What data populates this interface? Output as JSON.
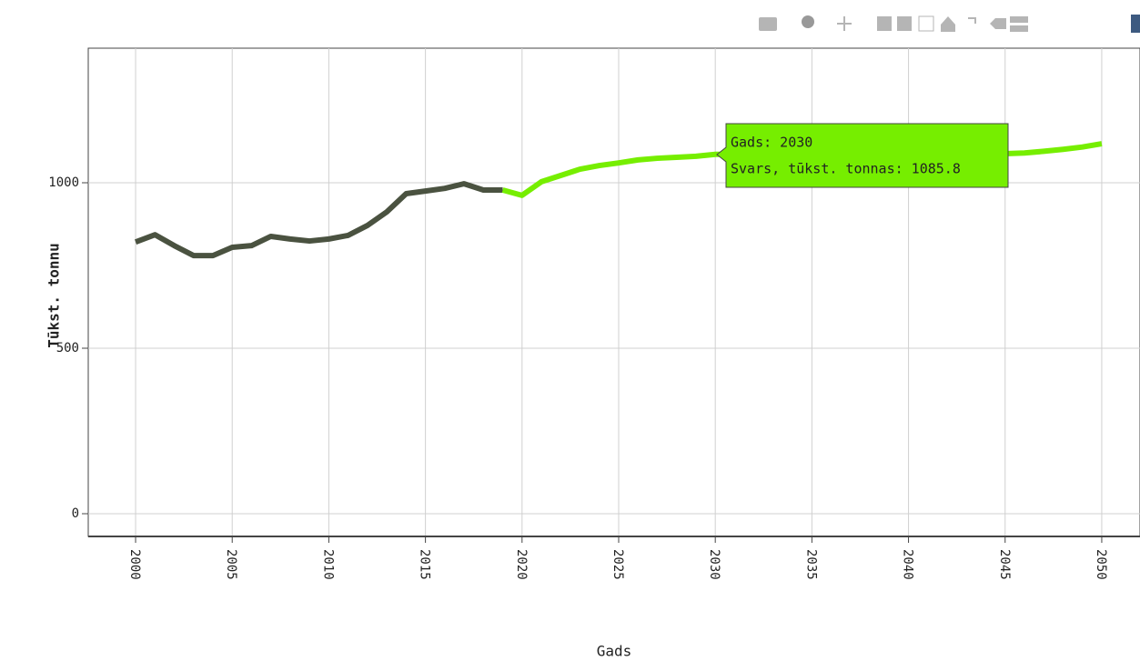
{
  "chart_data": {
    "type": "line",
    "x_label": "Gads",
    "y_label": "Tūkst. tonnu",
    "xlim": [
      1997.55,
      2051.98
    ],
    "ylim": [
      -68.7,
      1406.6
    ],
    "xticks": [
      2000,
      2005,
      2010,
      2015,
      2020,
      2025,
      2030,
      2035,
      2040,
      2045,
      2050
    ],
    "yticks": [
      0,
      500,
      1000
    ],
    "grid": true,
    "series": [
      {
        "color": "#4a5240",
        "x": [
          2000,
          2001,
          2002,
          2003,
          2004,
          2005,
          2006,
          2007,
          2008,
          2009,
          2010,
          2011,
          2012,
          2013,
          2014,
          2015,
          2016,
          2017,
          2018,
          2019
        ],
        "values": [
          821,
          843,
          810,
          780,
          780,
          805,
          810,
          838,
          830,
          824,
          830,
          841,
          871,
          912,
          967,
          975,
          983,
          997,
          978,
          978
        ]
      },
      {
        "color": "#76ee00",
        "x": [
          2019,
          2020,
          2021,
          2022,
          2023,
          2024,
          2025,
          2026,
          2027,
          2028,
          2029,
          2030,
          2031,
          2032,
          2033,
          2034,
          2035,
          2036,
          2037,
          2038,
          2039,
          2040,
          2041,
          2042,
          2043,
          2044,
          2045,
          2046,
          2047,
          2048,
          2049,
          2050
        ],
        "values": [
          978,
          962,
          1003,
          1022,
          1041,
          1052,
          1060,
          1069,
          1074,
          1077,
          1080,
          1085.8,
          1086,
          1086,
          1087,
          1087,
          1087,
          1087,
          1088,
          1088,
          1088,
          1088,
          1088,
          1088,
          1088,
          1088,
          1088,
          1090,
          1095,
          1101,
          1108,
          1118
        ]
      }
    ],
    "tooltip": {
      "lines": [
        "Gads: 2030",
        "Svars, tūkst. tonnas: 1085.8"
      ],
      "color": "#76ee00"
    }
  }
}
